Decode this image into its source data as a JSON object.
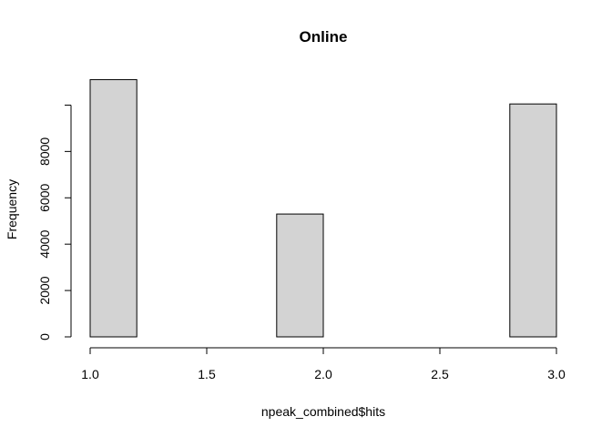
{
  "chart_data": {
    "type": "bar",
    "title": "Online",
    "xlabel": "npeak_combined$hits",
    "ylabel": "Frequency",
    "xlim": [
      1.0,
      3.0
    ],
    "ylim": [
      0,
      11000
    ],
    "bin_width": 0.2,
    "bins": [
      {
        "x0": 1.0,
        "x1": 1.2,
        "value": 11100
      },
      {
        "x0": 1.2,
        "x1": 1.4,
        "value": 0
      },
      {
        "x0": 1.4,
        "x1": 1.6,
        "value": 0
      },
      {
        "x0": 1.6,
        "x1": 1.8,
        "value": 0
      },
      {
        "x0": 1.8,
        "x1": 2.0,
        "value": 5300
      },
      {
        "x0": 2.0,
        "x1": 2.2,
        "value": 0
      },
      {
        "x0": 2.2,
        "x1": 2.4,
        "value": 0
      },
      {
        "x0": 2.4,
        "x1": 2.6,
        "value": 0
      },
      {
        "x0": 2.6,
        "x1": 2.8,
        "value": 0
      },
      {
        "x0": 2.8,
        "x1": 3.0,
        "value": 10050
      }
    ],
    "x_ticks": [
      {
        "value": 1.0,
        "label": "1.0"
      },
      {
        "value": 1.5,
        "label": "1.5"
      },
      {
        "value": 2.0,
        "label": "2.0"
      },
      {
        "value": 2.5,
        "label": "2.5"
      },
      {
        "value": 3.0,
        "label": "3.0"
      }
    ],
    "y_ticks": [
      {
        "value": 0,
        "label": "0"
      },
      {
        "value": 2000,
        "label": "2000"
      },
      {
        "value": 4000,
        "label": "4000"
      },
      {
        "value": 6000,
        "label": "6000"
      },
      {
        "value": 8000,
        "label": "8000"
      },
      {
        "value": 10000,
        "label": ""
      }
    ],
    "bar_fill": "#d3d3d3",
    "bar_stroke": "#000000",
    "grid": false,
    "legend": "none"
  }
}
